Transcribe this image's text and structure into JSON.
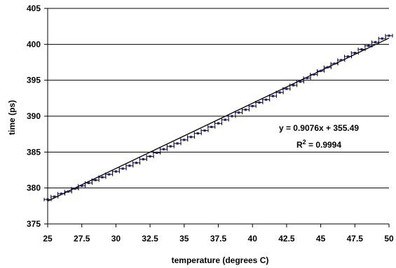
{
  "chart_data": {
    "type": "scatter",
    "xlabel": "temperature (degrees C)",
    "ylabel": "time (ps)",
    "xlim": [
      25,
      50
    ],
    "ylim": [
      375,
      405
    ],
    "x_ticks": [
      "25",
      "27.5",
      "30",
      "32.5",
      "35",
      "37.5",
      "40",
      "42.5",
      "45",
      "47.5",
      "50"
    ],
    "y_ticks": [
      "375",
      "380",
      "385",
      "390",
      "395",
      "400",
      "405"
    ],
    "grid": "horizontal",
    "marker_color": "#1a1a8c",
    "error_bars": true,
    "series": [
      {
        "points": [
          [
            25.0,
            378.4
          ],
          [
            25.5,
            378.8
          ],
          [
            26.0,
            379.2
          ],
          [
            26.5,
            379.5
          ],
          [
            27.0,
            379.9
          ],
          [
            27.5,
            380.3
          ],
          [
            28.0,
            380.7
          ],
          [
            28.5,
            381.1
          ],
          [
            29.0,
            381.5
          ],
          [
            29.5,
            381.9
          ],
          [
            30.0,
            382.3
          ],
          [
            30.5,
            382.7
          ],
          [
            31.0,
            383.1
          ],
          [
            31.5,
            383.5
          ],
          [
            32.0,
            384.0
          ],
          [
            32.5,
            384.4
          ],
          [
            33.0,
            384.9
          ],
          [
            33.5,
            385.4
          ],
          [
            34.0,
            385.8
          ],
          [
            34.5,
            386.2
          ],
          [
            35.0,
            386.7
          ],
          [
            35.5,
            387.1
          ],
          [
            36.0,
            387.6
          ],
          [
            36.5,
            388.0
          ],
          [
            37.0,
            388.5
          ],
          [
            37.5,
            389.0
          ],
          [
            38.0,
            389.5
          ],
          [
            38.5,
            390.0
          ],
          [
            39.0,
            390.5
          ],
          [
            39.5,
            390.9
          ],
          [
            40.0,
            391.4
          ],
          [
            40.5,
            391.9
          ],
          [
            41.0,
            392.3
          ],
          [
            41.5,
            392.8
          ],
          [
            42.0,
            393.3
          ],
          [
            42.5,
            393.8
          ],
          [
            43.0,
            394.3
          ],
          [
            43.5,
            394.8
          ],
          [
            44.0,
            395.3
          ],
          [
            44.5,
            395.8
          ],
          [
            45.0,
            396.3
          ],
          [
            45.5,
            396.8
          ],
          [
            46.0,
            397.3
          ],
          [
            46.5,
            397.8
          ],
          [
            47.0,
            398.3
          ],
          [
            47.5,
            398.8
          ],
          [
            48.0,
            399.3
          ],
          [
            48.5,
            399.8
          ],
          [
            49.0,
            400.3
          ],
          [
            49.5,
            400.8
          ],
          [
            50.0,
            401.2
          ]
        ]
      }
    ],
    "trendline": {
      "slope": 0.9076,
      "intercept": 355.49
    },
    "annotations": {
      "equation": "y = 0.9076x + 355.49",
      "r_squared_prefix": "R",
      "r_squared_sup": "2",
      "r_squared_suffix": " = 0.9994"
    }
  }
}
